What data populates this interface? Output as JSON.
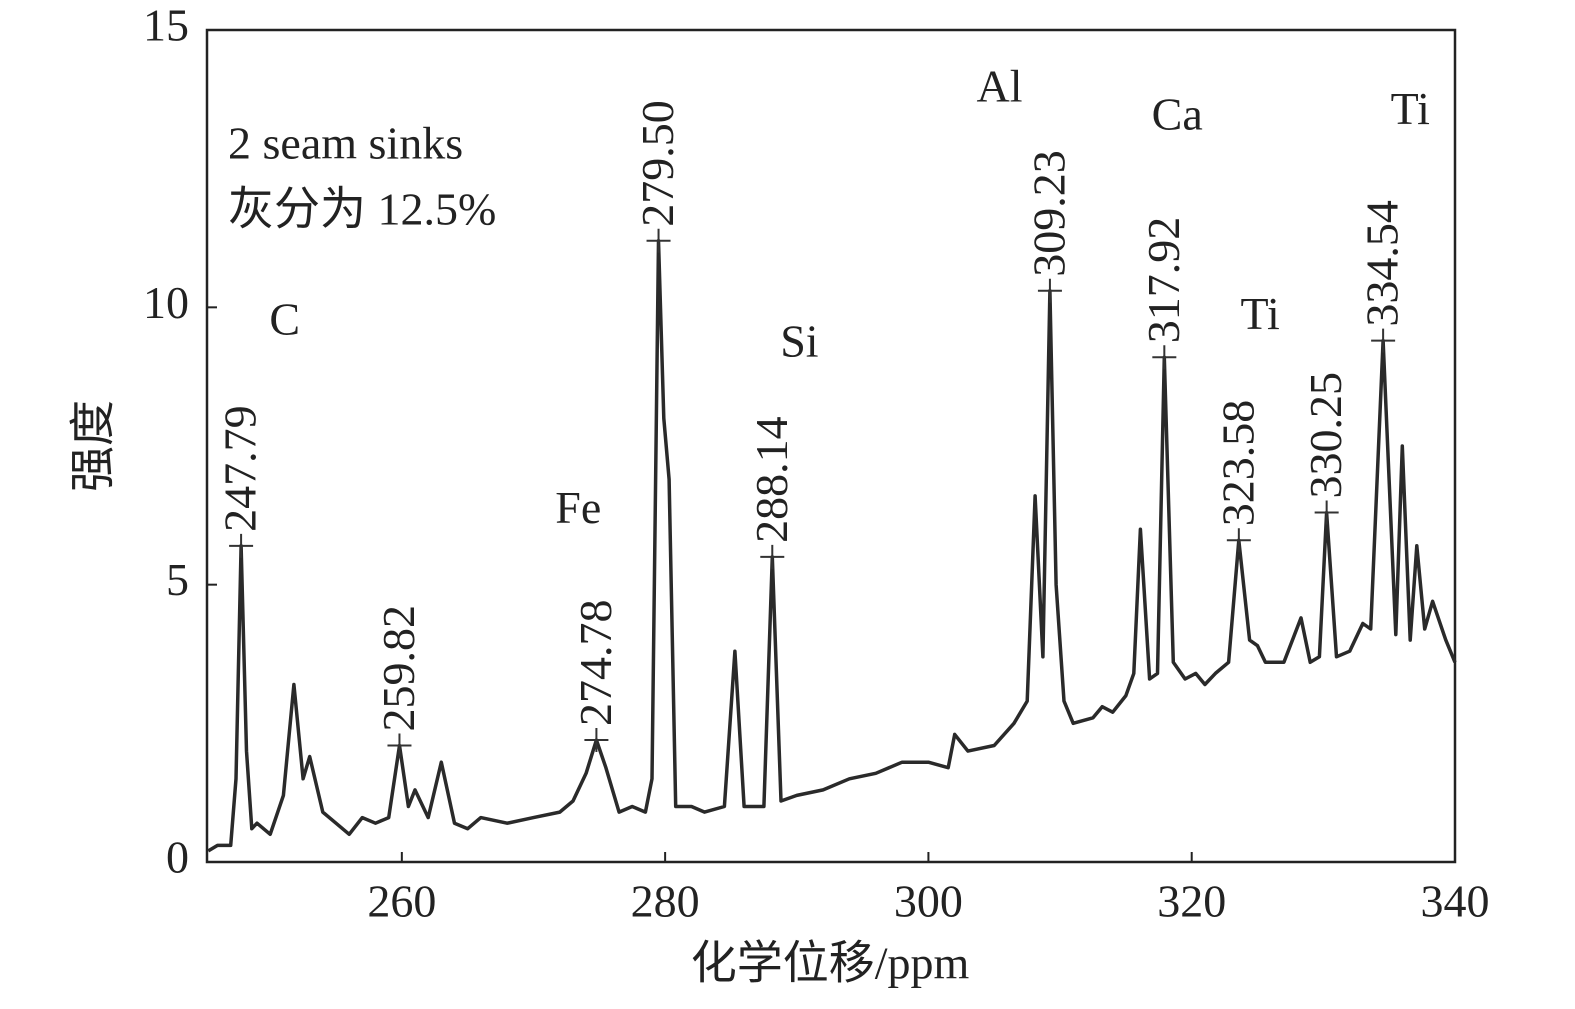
{
  "chart_data": {
    "type": "line",
    "xlabel": "化学位移/ppm",
    "ylabel": "强度",
    "info": [
      "2 seam sinks",
      "灰分为 12.5%"
    ],
    "color": "#2a2a2a",
    "xlim": [
      245.2,
      340
    ],
    "ylim": [
      0,
      15
    ],
    "xticks": [
      260,
      280,
      300,
      320,
      340
    ],
    "yticks": [
      0,
      5,
      10,
      15
    ],
    "x": [
      245.3,
      246,
      247,
      247.4,
      247.79,
      248.2,
      248.6,
      249,
      250,
      251,
      251.8,
      252.5,
      253,
      254,
      255,
      256,
      257,
      258,
      259,
      259.82,
      260.5,
      261,
      262,
      263,
      264,
      265,
      266,
      268,
      270,
      272,
      273,
      274,
      274.78,
      275.5,
      276.5,
      277.5,
      278.5,
      279,
      279.5,
      279.9,
      280.3,
      280.8,
      282,
      283,
      284.5,
      285.3,
      286,
      287.5,
      288.14,
      288.8,
      290,
      292,
      294,
      296,
      298,
      300,
      301.5,
      302,
      303,
      305,
      306.5,
      307.5,
      308.1,
      308.7,
      309.23,
      309.7,
      310.3,
      311,
      312.5,
      313.2,
      314,
      315,
      315.6,
      316.1,
      316.8,
      317.4,
      317.92,
      318.6,
      319.5,
      320.3,
      321,
      321.8,
      322.8,
      323.58,
      324.4,
      325,
      325.6,
      327,
      328.3,
      329,
      329.7,
      330.25,
      331,
      332,
      333,
      333.6,
      334.54,
      335.5,
      336,
      336.6,
      337.1,
      337.7,
      338.3,
      339.3,
      340
    ],
    "values": [
      0.2,
      0.3,
      0.3,
      1.5,
      5.7,
      2.0,
      0.6,
      0.7,
      0.5,
      1.2,
      3.2,
      1.5,
      1.9,
      0.9,
      0.7,
      0.5,
      0.8,
      0.7,
      0.8,
      2.1,
      1.0,
      1.3,
      0.8,
      1.8,
      0.7,
      0.6,
      0.8,
      0.7,
      0.8,
      0.9,
      1.1,
      1.6,
      2.2,
      1.7,
      0.9,
      1.0,
      0.9,
      1.5,
      11.2,
      8.0,
      6.9,
      1.0,
      1.0,
      0.9,
      1.0,
      3.8,
      1.0,
      1.0,
      5.5,
      1.1,
      1.2,
      1.3,
      1.5,
      1.6,
      1.8,
      1.8,
      1.7,
      2.3,
      2.0,
      2.1,
      2.5,
      2.9,
      6.6,
      3.7,
      10.3,
      5.0,
      2.9,
      2.5,
      2.6,
      2.8,
      2.7,
      3.0,
      3.4,
      6.0,
      3.3,
      3.4,
      9.1,
      3.6,
      3.3,
      3.4,
      3.2,
      3.4,
      3.6,
      5.8,
      4.0,
      3.9,
      3.6,
      3.6,
      4.4,
      3.6,
      3.7,
      6.3,
      3.7,
      3.8,
      4.3,
      4.2,
      9.4,
      4.1,
      7.5,
      4.0,
      5.7,
      4.2,
      4.7,
      4.0,
      3.6
    ],
    "peaks": {
      "x": [
        247.79,
        259.82,
        274.78,
        279.5,
        288.14,
        309.23,
        317.92,
        323.58,
        330.25,
        334.54
      ],
      "x_labels": [
        "247.79",
        "259.82",
        "274.78",
        "279.50",
        "288.14",
        "309.23",
        "317.92",
        "323.58",
        "330.25",
        "334.54"
      ],
      "values": [
        5.7,
        2.1,
        2.2,
        11.2,
        5.5,
        10.3,
        9.1,
        5.8,
        6.3,
        9.4
      ]
    },
    "annotations": [
      {
        "text": "C",
        "x": 251.1,
        "y": 9.7
      },
      {
        "text": "Fe",
        "x": 273.4,
        "y": 6.3
      },
      {
        "text": "Si",
        "x": 290.2,
        "y": 9.3
      },
      {
        "text": "Al",
        "x": 305.4,
        "y": 13.9
      },
      {
        "text": "Ca",
        "x": 318.9,
        "y": 13.4
      },
      {
        "text": "Ti",
        "x": 325.2,
        "y": 9.8
      },
      {
        "text": "Ti",
        "x": 336.6,
        "y": 13.5
      }
    ]
  }
}
